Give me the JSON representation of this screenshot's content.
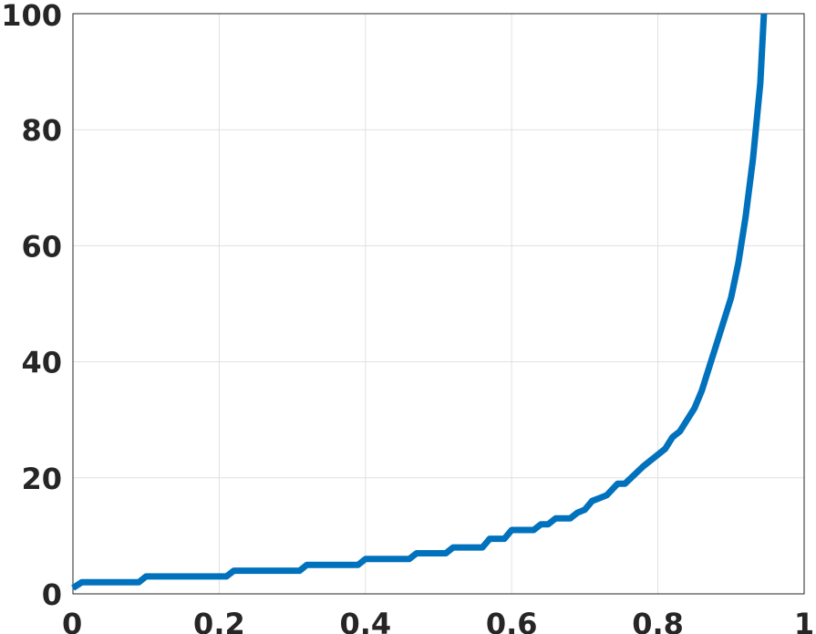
{
  "chart_data": {
    "type": "line",
    "title": "",
    "xlabel": "",
    "ylabel": "",
    "xlim": [
      0,
      1
    ],
    "ylim": [
      0,
      100
    ],
    "grid": true,
    "x_ticks": [
      0,
      0.2,
      0.4,
      0.6,
      0.8,
      1
    ],
    "x_tick_labels": [
      "0",
      "0.2",
      "0.4",
      "0.6",
      "0.8",
      "1"
    ],
    "y_ticks": [
      0,
      20,
      40,
      60,
      80,
      100
    ],
    "y_tick_labels": [
      "0",
      "20",
      "40",
      "60",
      "80",
      "100"
    ],
    "line_color": "#0072BD",
    "series": [
      {
        "x": [
          0.0,
          0.012,
          0.09,
          0.1,
          0.21,
          0.22,
          0.31,
          0.32,
          0.39,
          0.4,
          0.46,
          0.47,
          0.51,
          0.52,
          0.56,
          0.57,
          0.59,
          0.6,
          0.63,
          0.64,
          0.65,
          0.66,
          0.68,
          0.69,
          0.7,
          0.71,
          0.72,
          0.73,
          0.745,
          0.755,
          0.78,
          0.8,
          0.81,
          0.82,
          0.83,
          0.85,
          0.86,
          0.87,
          0.88,
          0.89,
          0.9,
          0.91,
          0.92,
          0.93,
          0.94,
          0.945
        ],
        "y": [
          1.0,
          2.0,
          2.0,
          3.0,
          3.0,
          4.0,
          4.0,
          5.0,
          5.0,
          6.0,
          6.0,
          7.0,
          7.0,
          8.0,
          8.0,
          9.5,
          9.5,
          11.0,
          11.0,
          12.0,
          12.0,
          13.0,
          13.0,
          14.0,
          14.5,
          16.0,
          16.5,
          17.0,
          19.0,
          19.0,
          22.0,
          24.0,
          25.0,
          27.0,
          28.0,
          32.0,
          35.0,
          39.0,
          43.0,
          47.0,
          51.0,
          57.0,
          65.0,
          75.0,
          88.0,
          100.0
        ]
      }
    ]
  }
}
